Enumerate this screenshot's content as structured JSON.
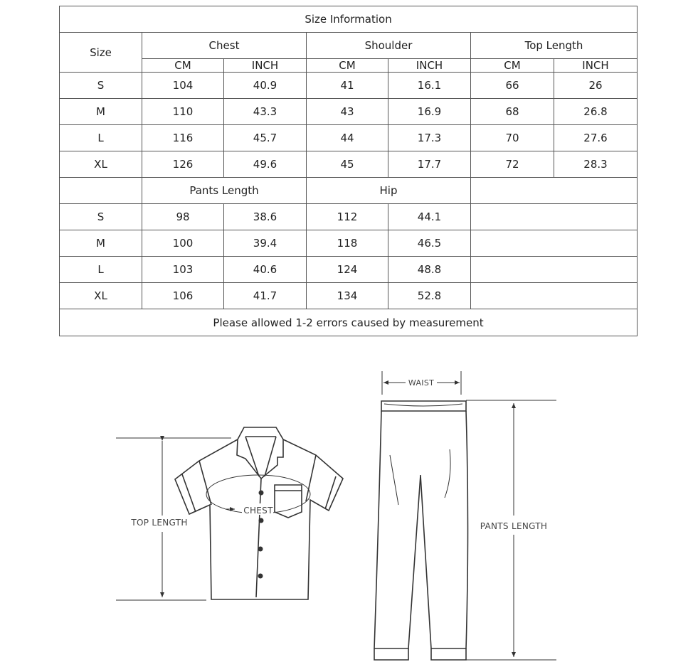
{
  "table": {
    "title": "Size Information",
    "size_header": "Size",
    "top_groups": [
      "Chest",
      "Shoulder",
      "Top Length"
    ],
    "units": [
      "CM",
      "INCH",
      "CM",
      "INCH",
      "CM",
      "INCH"
    ],
    "top_rows": [
      {
        "size": "S",
        "values": [
          "104",
          "40.9",
          "41",
          "16.1",
          "66",
          "26"
        ]
      },
      {
        "size": "M",
        "values": [
          "110",
          "43.3",
          "43",
          "16.9",
          "68",
          "26.8"
        ]
      },
      {
        "size": "L",
        "values": [
          "116",
          "45.7",
          "44",
          "17.3",
          "70",
          "27.6"
        ]
      },
      {
        "size": "XL",
        "values": [
          "126",
          "49.6",
          "45",
          "17.7",
          "72",
          "28.3"
        ]
      }
    ],
    "bottom_groups": [
      "Pants Length",
      "Hip"
    ],
    "bottom_rows": [
      {
        "size": "S",
        "values": [
          "98",
          "38.6",
          "112",
          "44.1"
        ]
      },
      {
        "size": "M",
        "values": [
          "100",
          "39.4",
          "118",
          "46.5"
        ]
      },
      {
        "size": "L",
        "values": [
          "103",
          "40.6",
          "124",
          "48.8"
        ]
      },
      {
        "size": "XL",
        "values": [
          "106",
          "41.7",
          "134",
          "52.8"
        ]
      }
    ],
    "footer": "Please allowed 1-2 errors caused by measurement"
  },
  "diagram": {
    "top_length": "TOP LENGTH",
    "chest": "CHEST",
    "waist": "WAIST",
    "pants_length": "PANTS LENGTH"
  }
}
